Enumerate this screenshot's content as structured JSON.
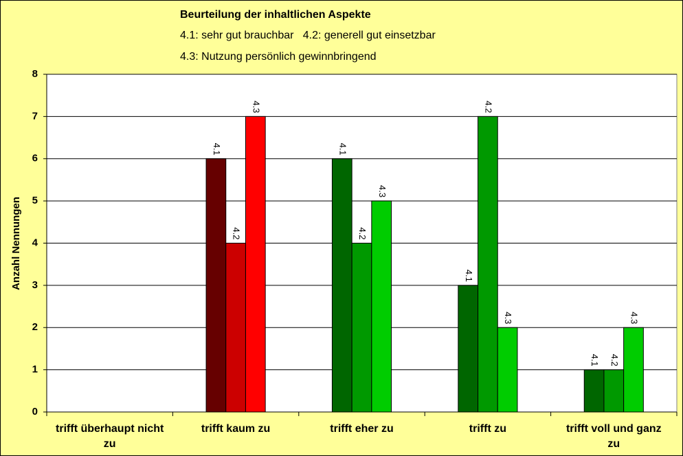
{
  "chart_data": {
    "type": "bar",
    "title": "Beurteilung der inhaltlichen Aspekte",
    "subtitle": [
      "4.1: sehr gut brauchbar   4.2: generell gut einsetzbar",
      "4.3: Nutzung persönlich gewinnbringend"
    ],
    "y_label": "Anzahl Nennungen",
    "categories": [
      "trifft überhaupt nicht zu",
      "trifft kaum zu",
      "trifft eher zu",
      "trifft zu",
      "trifft voll und ganz zu"
    ],
    "series": [
      {
        "name": "4.1",
        "values": [
          null,
          6,
          6,
          3,
          1
        ],
        "colors": [
          null,
          "#660000",
          "#006600",
          "#006600",
          "#006600"
        ]
      },
      {
        "name": "4.2",
        "values": [
          null,
          4,
          4,
          7,
          1
        ],
        "colors": [
          null,
          "#cc0000",
          "#009900",
          "#009900",
          "#009900"
        ]
      },
      {
        "name": "4.3",
        "values": [
          null,
          7,
          5,
          2,
          2
        ],
        "colors": [
          null,
          "#ff0000",
          "#00cc00",
          "#00cc00",
          "#00cc00"
        ]
      }
    ],
    "ylim": [
      0,
      8
    ],
    "yticks": [
      0,
      1,
      2,
      3,
      4,
      5,
      6,
      7,
      8
    ],
    "grid": true,
    "background": "#ffff99"
  }
}
